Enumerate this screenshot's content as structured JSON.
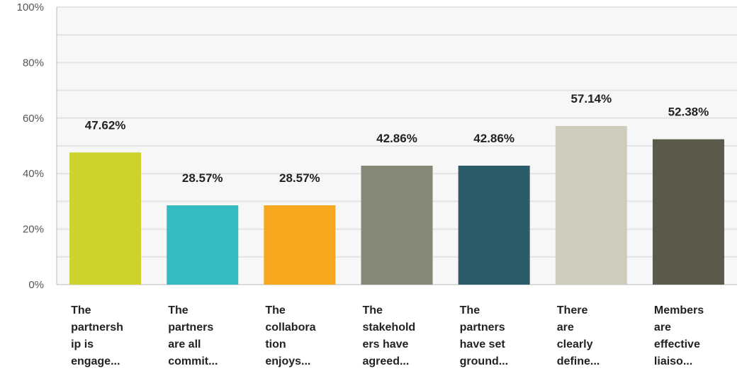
{
  "chart_data": {
    "type": "bar",
    "title": "",
    "xlabel": "",
    "ylabel": "",
    "ylim": [
      0,
      100
    ],
    "yticks": [
      "0%",
      "20%",
      "40%",
      "60%",
      "80%",
      "100%"
    ],
    "ytick_values": [
      0,
      20,
      40,
      60,
      80,
      100
    ],
    "grid": true,
    "legend": "none",
    "categories": [
      [
        "The",
        "partnersh",
        "ip is",
        "engage..."
      ],
      [
        "The",
        "partners",
        "are all",
        "commit..."
      ],
      [
        "The",
        "collabora",
        "tion",
        "enjoys..."
      ],
      [
        "The",
        "stakehold",
        "ers have",
        "agreed..."
      ],
      [
        "The",
        "partners",
        "have set",
        "ground..."
      ],
      [
        "There",
        "are",
        "clearly",
        "define..."
      ],
      [
        "Members",
        "are",
        "effective",
        "liaiso..."
      ]
    ],
    "values": [
      47.62,
      28.57,
      28.57,
      42.86,
      42.86,
      57.14,
      52.38
    ],
    "value_labels": [
      "47.62%",
      "28.57%",
      "28.57%",
      "42.86%",
      "42.86%",
      "57.14%",
      "52.38%"
    ],
    "colors": [
      "#cdd22d",
      "#33bcbf",
      "#f5a81e",
      "#878777",
      "#2c5c6a",
      "#cfccbc",
      "#5c5a4a"
    ],
    "gridline_color": "#e4e4e4",
    "plot_background": "#f7f7f7",
    "axis_color": "#bbbbbb"
  }
}
